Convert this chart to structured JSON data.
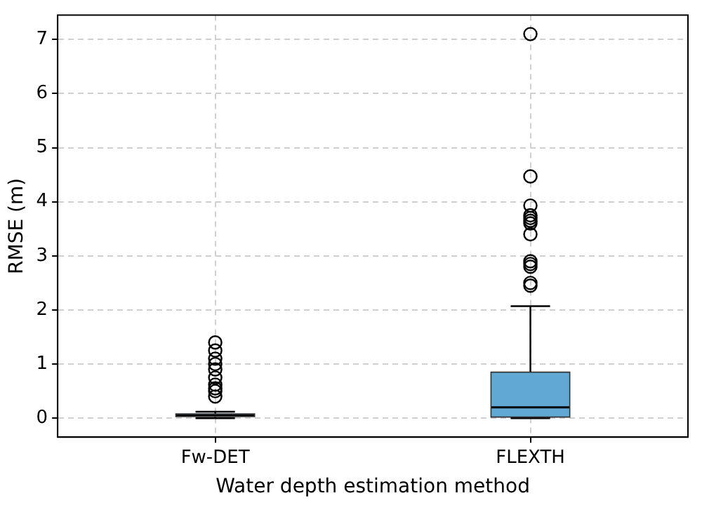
{
  "chart_data": {
    "type": "box",
    "xlabel": "Water depth estimation method",
    "ylabel": "RMSE (m)",
    "categories": [
      "Fw-DET",
      "FLEXTH"
    ],
    "boxes": [
      {
        "low": 0,
        "q1": 0.03,
        "median": 0.05,
        "q3": 0.08,
        "high": 0.12,
        "outliers": [
          1.4,
          1.25,
          1.1,
          1.0,
          0.9,
          0.75,
          0.62,
          0.55,
          0.5,
          0.4
        ]
      },
      {
        "low": 0,
        "q1": 0.02,
        "median": 0.2,
        "q3": 0.85,
        "high": 2.07,
        "outliers": [
          7.1,
          4.47,
          3.93,
          3.75,
          3.7,
          3.65,
          3.6,
          3.4,
          2.9,
          2.85,
          2.8,
          2.5,
          2.45
        ]
      }
    ],
    "color": "#62a8d4",
    "ylim": [
      -0.35,
      7.45
    ],
    "yticks": [
      0,
      1,
      2,
      3,
      4,
      5,
      6,
      7
    ],
    "grid": true,
    "legend": false,
    "marker": "circle"
  }
}
